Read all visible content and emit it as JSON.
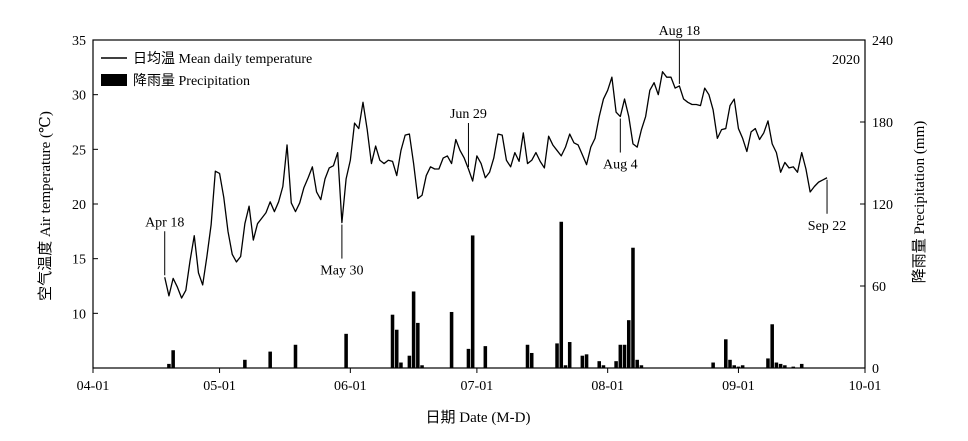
{
  "chart_data": {
    "type": "bar+line",
    "year_label": "2020",
    "xlabel": "日期 Date (M-D)",
    "ylabel_left": "空气温度 Air temperature (℃)",
    "ylabel_right": "降雨量 Precipitation (mm)",
    "x_ticks": [
      {
        "date": "2020-04-01",
        "label": "04-01"
      },
      {
        "date": "2020-05-01",
        "label": "05-01"
      },
      {
        "date": "2020-06-01",
        "label": "06-01"
      },
      {
        "date": "2020-07-01",
        "label": "07-01"
      },
      {
        "date": "2020-08-01",
        "label": "08-01"
      },
      {
        "date": "2020-09-01",
        "label": "09-01"
      },
      {
        "date": "2020-10-01",
        "label": "10-01"
      }
    ],
    "xlim": [
      "2020-04-01",
      "2020-10-01"
    ],
    "ylim_left": [
      5,
      35
    ],
    "yticks_left": [
      10,
      15,
      20,
      25,
      30,
      35
    ],
    "ylim_right": [
      0,
      240
    ],
    "yticks_right": [
      0,
      60,
      120,
      180,
      240
    ],
    "legend": {
      "placement": "top-left",
      "entries": [
        {
          "label": "日均温 Mean daily temperature",
          "kind": "line"
        },
        {
          "label": "降雨量 Precipitation",
          "kind": "bar"
        }
      ]
    },
    "annotations": [
      {
        "label": "Apr 18",
        "date": "2020-04-18",
        "position": "above"
      },
      {
        "label": "May 30",
        "date": "2020-05-30",
        "position": "below"
      },
      {
        "label": "Jun 29",
        "date": "2020-06-29",
        "position": "above"
      },
      {
        "label": "Aug 4",
        "date": "2020-08-04",
        "position": "below"
      },
      {
        "label": "Aug 18",
        "date": "2020-08-18",
        "position": "above"
      },
      {
        "label": "Sep 22",
        "date": "2020-09-22",
        "position": "below"
      }
    ],
    "series": [
      {
        "name": "日均温 Mean daily temperature",
        "type": "line",
        "axis": "left",
        "x": [
          "2020-04-18",
          "2020-04-19",
          "2020-04-20",
          "2020-04-21",
          "2020-04-22",
          "2020-04-23",
          "2020-04-24",
          "2020-04-25",
          "2020-04-26",
          "2020-04-27",
          "2020-04-28",
          "2020-04-29",
          "2020-04-30",
          "2020-05-01",
          "2020-05-02",
          "2020-05-03",
          "2020-05-04",
          "2020-05-05",
          "2020-05-06",
          "2020-05-07",
          "2020-05-08",
          "2020-05-09",
          "2020-05-10",
          "2020-05-11",
          "2020-05-12",
          "2020-05-13",
          "2020-05-14",
          "2020-05-15",
          "2020-05-16",
          "2020-05-17",
          "2020-05-18",
          "2020-05-19",
          "2020-05-20",
          "2020-05-21",
          "2020-05-22",
          "2020-05-23",
          "2020-05-24",
          "2020-05-25",
          "2020-05-26",
          "2020-05-27",
          "2020-05-28",
          "2020-05-29",
          "2020-05-30",
          "2020-05-31",
          "2020-06-01",
          "2020-06-02",
          "2020-06-03",
          "2020-06-04",
          "2020-06-05",
          "2020-06-06",
          "2020-06-07",
          "2020-06-08",
          "2020-06-09",
          "2020-06-10",
          "2020-06-11",
          "2020-06-12",
          "2020-06-13",
          "2020-06-14",
          "2020-06-15",
          "2020-06-16",
          "2020-06-17",
          "2020-06-18",
          "2020-06-19",
          "2020-06-20",
          "2020-06-21",
          "2020-06-22",
          "2020-06-23",
          "2020-06-24",
          "2020-06-25",
          "2020-06-26",
          "2020-06-27",
          "2020-06-28",
          "2020-06-29",
          "2020-06-30",
          "2020-07-01",
          "2020-07-02",
          "2020-07-03",
          "2020-07-04",
          "2020-07-05",
          "2020-07-06",
          "2020-07-07",
          "2020-07-08",
          "2020-07-09",
          "2020-07-10",
          "2020-07-11",
          "2020-07-12",
          "2020-07-13",
          "2020-07-14",
          "2020-07-15",
          "2020-07-16",
          "2020-07-17",
          "2020-07-18",
          "2020-07-19",
          "2020-07-20",
          "2020-07-21",
          "2020-07-22",
          "2020-07-23",
          "2020-07-24",
          "2020-07-25",
          "2020-07-26",
          "2020-07-27",
          "2020-07-28",
          "2020-07-29",
          "2020-07-30",
          "2020-07-31",
          "2020-08-01",
          "2020-08-02",
          "2020-08-03",
          "2020-08-04",
          "2020-08-05",
          "2020-08-06",
          "2020-08-07",
          "2020-08-08",
          "2020-08-09",
          "2020-08-10",
          "2020-08-11",
          "2020-08-12",
          "2020-08-13",
          "2020-08-14",
          "2020-08-15",
          "2020-08-16",
          "2020-08-17",
          "2020-08-18",
          "2020-08-19",
          "2020-08-20",
          "2020-08-21",
          "2020-08-22",
          "2020-08-23",
          "2020-08-24",
          "2020-08-25",
          "2020-08-26",
          "2020-08-27",
          "2020-08-28",
          "2020-08-29",
          "2020-08-30",
          "2020-08-31",
          "2020-09-01",
          "2020-09-02",
          "2020-09-03",
          "2020-09-04",
          "2020-09-05",
          "2020-09-06",
          "2020-09-07",
          "2020-09-08",
          "2020-09-09",
          "2020-09-10",
          "2020-09-11",
          "2020-09-12",
          "2020-09-13",
          "2020-09-14",
          "2020-09-15",
          "2020-09-16",
          "2020-09-17",
          "2020-09-18",
          "2020-09-19",
          "2020-09-20",
          "2020-09-21",
          "2020-09-22"
        ],
        "values": [
          13.3,
          11.6,
          13.2,
          12.4,
          11.4,
          12.1,
          14.8,
          17.1,
          13.7,
          12.6,
          15.2,
          18.1,
          23.0,
          22.8,
          20.6,
          17.5,
          15.4,
          14.7,
          15.2,
          18.2,
          19.8,
          16.7,
          18.2,
          18.7,
          19.2,
          20.2,
          19.3,
          20.2,
          21.6,
          25.4,
          20.1,
          19.3,
          20.1,
          21.5,
          22.4,
          23.4,
          21.1,
          20.4,
          22.3,
          23.3,
          23.5,
          24.7,
          18.3,
          22.3,
          24.0,
          27.4,
          26.9,
          29.3,
          26.8,
          23.7,
          25.3,
          24.0,
          23.7,
          24.0,
          23.9,
          22.6,
          24.9,
          26.3,
          26.4,
          23.7,
          20.5,
          20.8,
          22.6,
          23.4,
          23.2,
          23.2,
          24.2,
          24.4,
          23.7,
          25.9,
          24.9,
          24.2,
          23.2,
          22.1,
          24.4,
          23.7,
          22.4,
          22.9,
          24.2,
          26.4,
          26.3,
          24.0,
          23.4,
          24.7,
          23.9,
          26.5,
          23.7,
          24.0,
          24.7,
          23.9,
          23.3,
          26.2,
          25.4,
          24.9,
          24.4,
          25.2,
          26.4,
          25.6,
          25.4,
          24.5,
          23.6,
          25.2,
          26.0,
          28.0,
          29.6,
          30.4,
          31.6,
          28.4,
          28.0,
          29.6,
          28.0,
          25.5,
          25.2,
          26.8,
          28.0,
          30.4,
          31.1,
          30.0,
          32.1,
          31.6,
          31.6,
          30.6,
          30.8,
          29.6,
          29.3,
          29.1,
          29.1,
          29.0,
          30.6,
          30.0,
          28.6,
          26.0,
          26.8,
          26.9,
          29.0,
          29.6,
          26.9,
          26.0,
          24.8,
          26.6,
          26.9,
          25.9,
          26.5,
          27.6,
          25.5,
          24.7,
          22.9,
          23.8,
          23.3,
          23.4,
          22.9,
          24.7,
          23.2,
          21.1,
          21.6,
          22.0,
          22.2,
          22.4
        ]
      },
      {
        "name": "降雨量 Precipitation",
        "type": "bar",
        "axis": "right",
        "x": [
          "2020-04-19",
          "2020-04-20",
          "2020-05-07",
          "2020-05-13",
          "2020-05-19",
          "2020-05-31",
          "2020-06-11",
          "2020-06-12",
          "2020-06-13",
          "2020-06-15",
          "2020-06-16",
          "2020-06-17",
          "2020-06-18",
          "2020-06-25",
          "2020-06-29",
          "2020-06-30",
          "2020-07-03",
          "2020-07-13",
          "2020-07-14",
          "2020-07-20",
          "2020-07-21",
          "2020-07-22",
          "2020-07-23",
          "2020-07-26",
          "2020-07-27",
          "2020-07-30",
          "2020-07-31",
          "2020-08-03",
          "2020-08-04",
          "2020-08-05",
          "2020-08-06",
          "2020-08-07",
          "2020-08-08",
          "2020-08-09",
          "2020-08-26",
          "2020-08-29",
          "2020-08-30",
          "2020-08-31",
          "2020-09-01",
          "2020-09-02",
          "2020-09-08",
          "2020-09-09",
          "2020-09-10",
          "2020-09-11",
          "2020-09-12",
          "2020-09-14",
          "2020-09-16"
        ],
        "values": [
          3,
          13,
          6,
          12,
          17,
          25,
          39,
          28,
          4,
          9,
          56,
          33,
          2,
          41,
          14,
          97,
          16,
          17,
          11,
          18,
          107,
          2,
          19,
          9,
          10,
          5,
          2,
          5,
          17,
          17,
          35,
          88,
          6,
          2,
          4,
          21,
          6,
          2,
          1,
          2,
          7,
          32,
          4,
          3,
          2,
          1,
          3
        ]
      }
    ]
  }
}
